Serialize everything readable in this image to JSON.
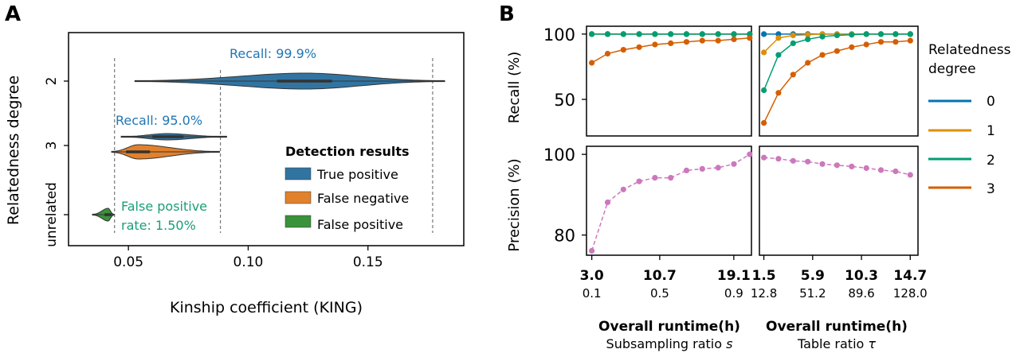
{
  "panels": {
    "a_letter": "A",
    "b_letter": "B"
  },
  "chart_data": [
    {
      "type": "violin",
      "panel": "A",
      "xlabel": "Kinship coefficient (KING)",
      "ylabel": "Relatedness degree",
      "xlim": [
        0.025,
        0.19
      ],
      "xticks": [
        "0.05",
        "0.10",
        "0.15"
      ],
      "xtick_values": [
        0.05,
        0.1,
        0.15
      ],
      "categories": [
        "2",
        "3",
        "unrelated"
      ],
      "thresholds": [
        0.0442,
        0.0884,
        0.177
      ],
      "violins": [
        {
          "category": "2",
          "result": "True positive",
          "min": 0.0527,
          "max": 0.182,
          "center": 0.124,
          "q1": 0.112,
          "q3": 0.135,
          "color": "#3274a1"
        },
        {
          "category": "3",
          "result": "True positive",
          "min": 0.047,
          "max": 0.091,
          "center": 0.066,
          "q1": 0.06,
          "q3": 0.073,
          "color": "#3274a1"
        },
        {
          "category": "3",
          "result": "False negative",
          "min": 0.043,
          "max": 0.088,
          "center": 0.054,
          "q1": 0.049,
          "q3": 0.059,
          "color": "#e1812c"
        },
        {
          "category": "unrelated",
          "result": "False positive",
          "min": 0.035,
          "max": 0.044,
          "center": 0.0415,
          "q1": 0.04,
          "q3": 0.043,
          "color": "#3a923a"
        }
      ],
      "annotations": [
        {
          "text": "Recall: 99.9%",
          "color": "#1f77b4"
        },
        {
          "text": "Recall: 95.0%",
          "color": "#1f77b4"
        },
        {
          "text": "False positive",
          "color": "#1a9e77"
        },
        {
          "text": "rate: 1.50%",
          "color": "#1a9e77"
        }
      ],
      "legend": {
        "title": "Detection results",
        "placement": "lower-right",
        "entries": [
          {
            "label": "True positive",
            "color": "#3274a1"
          },
          {
            "label": "False negative",
            "color": "#e1812c"
          },
          {
            "label": "False positive",
            "color": "#3a923a"
          }
        ]
      },
      "grid": false
    },
    {
      "type": "line",
      "panel": "B",
      "grid": false,
      "legend": {
        "title_line1": "Relatedness",
        "title_line2": "degree",
        "placement": "right",
        "entries": [
          {
            "label": "0",
            "color": "#0173b2"
          },
          {
            "label": "1",
            "color": "#de8f05"
          },
          {
            "label": "2",
            "color": "#029e73"
          },
          {
            "label": "3",
            "color": "#d55e00"
          }
        ]
      },
      "row_labels": {
        "recall": "Recall (%)",
        "precision": "Precision (%)"
      },
      "recall_yticks": [
        "100",
        "50"
      ],
      "recall_ytick_values": [
        100,
        50
      ],
      "recall_ylim": [
        22,
        106
      ],
      "precision_yticks": [
        "100",
        "80"
      ],
      "precision_ytick_values": [
        100,
        80
      ],
      "precision_ylim": [
        75,
        102
      ],
      "columns": [
        {
          "name": "subsampling",
          "xlim": [
            2.4,
            21.1
          ],
          "x": [
            3.0,
            4.79,
            6.58,
            8.37,
            10.16,
            11.95,
            13.74,
            15.53,
            17.32,
            19.11,
            20.9
          ],
          "xtick_values": [
            3.0,
            10.7,
            19.1
          ],
          "xticks_runtime": [
            "3.0",
            "10.7",
            "19.1"
          ],
          "xticks_ratio": [
            "0.1",
            "0.5",
            "0.9"
          ],
          "xlabel_runtime": "Overall runtime(h)",
          "xlabel_ratio": "Subsampling ratio ",
          "ratio_symbol": "s",
          "recall": [
            {
              "degree": "0",
              "color": "#0173b2",
              "values": [
                100,
                100,
                100,
                100,
                100,
                100,
                100,
                100,
                100,
                100,
                100
              ]
            },
            {
              "degree": "1",
              "color": "#de8f05",
              "values": [
                100,
                100,
                100,
                100,
                100,
                100,
                100,
                100,
                100,
                100,
                100
              ]
            },
            {
              "degree": "2",
              "color": "#029e73",
              "values": [
                100,
                100,
                100,
                100,
                100,
                100,
                100,
                100,
                100,
                100,
                100
              ]
            },
            {
              "degree": "3",
              "color": "#d55e00",
              "values": [
                78,
                85,
                88,
                90,
                92,
                93,
                94,
                95,
                95,
                96,
                97
              ]
            }
          ],
          "precision": [
            {
              "color": "#cc78bc",
              "values": [
                76.1,
                88.1,
                91.3,
                93.3,
                94.2,
                94.2,
                96.0,
                96.4,
                96.7,
                97.6,
                100
              ]
            }
          ]
        },
        {
          "name": "table",
          "xlim": [
            1.1,
            15.4
          ],
          "x": [
            1.5,
            2.82,
            4.14,
            5.46,
            6.78,
            8.1,
            9.42,
            10.74,
            12.06,
            13.38,
            14.7
          ],
          "xtick_values": [
            1.5,
            5.9,
            10.3,
            14.7
          ],
          "xticks_runtime": [
            "1.5",
            "5.9",
            "10.3",
            "14.7"
          ],
          "xticks_ratio": [
            "12.8",
            "51.2",
            "89.6",
            "128.0"
          ],
          "xlabel_runtime": "Overall runtime(h)",
          "xlabel_ratio": "Table ratio ",
          "ratio_symbol": "τ",
          "recall": [
            {
              "degree": "0",
              "color": "#0173b2",
              "values": [
                100,
                100,
                100,
                100,
                100,
                100,
                100,
                100,
                100,
                100,
                100
              ]
            },
            {
              "degree": "1",
              "color": "#de8f05",
              "values": [
                86,
                97,
                99,
                99.5,
                100,
                100,
                100,
                100,
                100,
                100,
                100
              ]
            },
            {
              "degree": "2",
              "color": "#029e73",
              "values": [
                57,
                84,
                93,
                96,
                98,
                99,
                99.5,
                100,
                100,
                100,
                100
              ]
            },
            {
              "degree": "3",
              "color": "#d55e00",
              "values": [
                32,
                55,
                69,
                78,
                84,
                87,
                90,
                92,
                94,
                94,
                95
              ]
            }
          ],
          "precision": [
            {
              "color": "#cc78bc",
              "values": [
                99.2,
                98.9,
                98.4,
                98.2,
                97.6,
                97.3,
                97.0,
                96.6,
                96.1,
                95.8,
                94.9
              ]
            }
          ]
        }
      ]
    }
  ]
}
